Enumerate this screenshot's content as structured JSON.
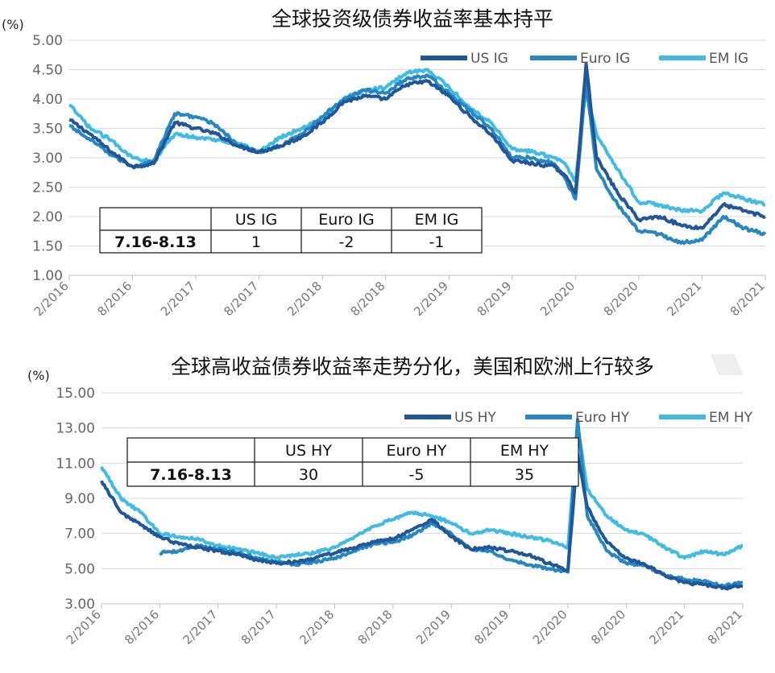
{
  "chart_data": [
    {
      "type": "line",
      "title": "全球投资级债券收益率基本持平",
      "unit_label": "(%)",
      "yticks": [
        "5.00",
        "4.50",
        "4.00",
        "3.50",
        "3.00",
        "2.50",
        "2.00",
        "1.50",
        "1.00"
      ],
      "ylim": [
        1.0,
        5.0
      ],
      "xticks": [
        "2/2016",
        "8/2016",
        "2/2017",
        "8/2017",
        "2/2018",
        "8/2018",
        "2/2019",
        "8/2019",
        "2/2020",
        "8/2020",
        "2/2021",
        "8/2021"
      ],
      "xlim": [
        "2/2016",
        "8/2021"
      ],
      "legend_position": "top-right",
      "grid": "horizontal",
      "x": [
        "2/2016",
        "4/2016",
        "6/2016",
        "8/2016",
        "10/2016",
        "12/2016",
        "2/2017",
        "4/2017",
        "6/2017",
        "8/2017",
        "10/2017",
        "12/2017",
        "2/2018",
        "4/2018",
        "6/2018",
        "8/2018",
        "10/2018",
        "12/2018",
        "2/2019",
        "4/2019",
        "6/2019",
        "8/2019",
        "10/2019",
        "12/2019",
        "1/2020",
        "2/2020",
        "3/2020",
        "4/2020",
        "6/2020",
        "8/2020",
        "10/2020",
        "12/2020",
        "2/2021",
        "4/2021",
        "6/2021",
        "8/2021"
      ],
      "series": [
        {
          "name": "US IG",
          "color": "#1f5799",
          "values": [
            3.65,
            3.4,
            3.1,
            2.85,
            2.9,
            3.6,
            3.5,
            3.4,
            3.2,
            3.1,
            3.2,
            3.35,
            3.6,
            3.95,
            4.05,
            4.0,
            4.25,
            4.3,
            4.05,
            3.7,
            3.4,
            2.95,
            2.9,
            2.85,
            2.7,
            2.4,
            4.6,
            3.0,
            2.4,
            1.95,
            2.0,
            1.85,
            1.8,
            2.2,
            2.1,
            2.0
          ]
        },
        {
          "name": "Euro IG",
          "color": "#2687c1",
          "values": [
            3.55,
            3.3,
            3.05,
            2.85,
            2.95,
            3.75,
            3.7,
            3.55,
            3.2,
            3.1,
            3.2,
            3.4,
            3.7,
            4.0,
            4.15,
            4.1,
            4.35,
            4.4,
            4.1,
            3.8,
            3.5,
            3.0,
            3.0,
            2.9,
            2.65,
            2.3,
            4.3,
            2.8,
            2.2,
            1.75,
            1.7,
            1.55,
            1.6,
            2.0,
            1.8,
            1.7
          ]
        },
        {
          "name": "EM IG",
          "color": "#3fbbe4",
          "values": [
            3.9,
            3.5,
            3.3,
            3.0,
            2.95,
            3.4,
            3.35,
            3.3,
            3.25,
            3.1,
            3.35,
            3.5,
            3.65,
            4.0,
            4.15,
            4.2,
            4.45,
            4.5,
            4.2,
            3.85,
            3.6,
            3.15,
            3.1,
            3.0,
            2.9,
            2.6,
            4.2,
            3.4,
            2.8,
            2.25,
            2.2,
            2.1,
            2.1,
            2.4,
            2.3,
            2.2
          ]
        }
      ],
      "table": {
        "headers": [
          "",
          "US IG",
          "Euro IG",
          "EM IG"
        ],
        "row": [
          "7.16-8.13",
          "1",
          "-2",
          "-1"
        ]
      }
    },
    {
      "type": "line",
      "title": "全球高收益债券收益率走势分化，美国和欧洲上行较多",
      "unit_label": "(%)",
      "yticks": [
        "15.00",
        "13.00",
        "11.00",
        "9.00",
        "7.00",
        "5.00",
        "3.00"
      ],
      "ylim": [
        3.0,
        15.0
      ],
      "xticks": [
        "2/2016",
        "8/2016",
        "2/2017",
        "8/2017",
        "2/2018",
        "8/2018",
        "2/2019",
        "8/2019",
        "2/2020",
        "8/2020",
        "2/2021",
        "8/2021"
      ],
      "xlim": [
        "2/2016",
        "8/2021"
      ],
      "legend_position": "top-right",
      "grid": "horizontal",
      "x": [
        "2/2016",
        "4/2016",
        "6/2016",
        "8/2016",
        "10/2016",
        "12/2016",
        "2/2017",
        "4/2017",
        "6/2017",
        "8/2017",
        "10/2017",
        "12/2017",
        "2/2018",
        "4/2018",
        "6/2018",
        "8/2018",
        "10/2018",
        "12/2018",
        "2/2019",
        "4/2019",
        "6/2019",
        "8/2019",
        "10/2019",
        "12/2019",
        "1/2020",
        "2/2020",
        "3/2020",
        "4/2020",
        "6/2020",
        "8/2020",
        "10/2020",
        "12/2020",
        "2/2021",
        "4/2021",
        "6/2021",
        "8/2021"
      ],
      "series": [
        {
          "name": "US HY",
          "color": "#1f5799",
          "values": [
            10.0,
            8.2,
            7.5,
            6.8,
            6.4,
            6.2,
            6.0,
            5.8,
            5.5,
            5.3,
            5.4,
            5.6,
            5.9,
            6.2,
            6.5,
            6.7,
            7.2,
            7.8,
            6.8,
            6.1,
            6.2,
            6.0,
            5.8,
            5.3,
            5.1,
            4.9,
            11.5,
            8.5,
            6.5,
            5.6,
            5.2,
            4.6,
            4.2,
            4.1,
            3.9,
            4.0
          ]
        },
        {
          "name": "Euro HY",
          "color": "#2687c1",
          "values": [
            null,
            null,
            null,
            5.9,
            6.0,
            6.3,
            6.1,
            5.9,
            5.6,
            5.4,
            5.2,
            5.4,
            5.6,
            6.0,
            6.4,
            6.5,
            6.9,
            7.6,
            7.0,
            6.1,
            6.0,
            5.5,
            5.2,
            5.0,
            4.9,
            4.8,
            13.5,
            8.0,
            6.0,
            5.3,
            5.2,
            4.6,
            4.4,
            4.3,
            4.0,
            4.2
          ]
        },
        {
          "name": "EM HY",
          "color": "#3fbbe4",
          "values": [
            10.8,
            9.0,
            8.2,
            7.0,
            6.8,
            6.7,
            6.3,
            6.1,
            5.9,
            5.6,
            5.8,
            5.9,
            6.2,
            6.8,
            7.4,
            7.8,
            8.2,
            8.0,
            7.6,
            7.0,
            7.2,
            7.0,
            6.8,
            6.6,
            6.4,
            6.2,
            13.2,
            9.5,
            8.0,
            7.2,
            6.9,
            6.2,
            5.6,
            6.0,
            5.8,
            6.3
          ]
        }
      ],
      "table": {
        "headers": [
          "",
          "US HY",
          "Euro HY",
          "EM HY"
        ],
        "row": [
          "7.16-8.13",
          "30",
          "-5",
          "35"
        ]
      }
    }
  ]
}
